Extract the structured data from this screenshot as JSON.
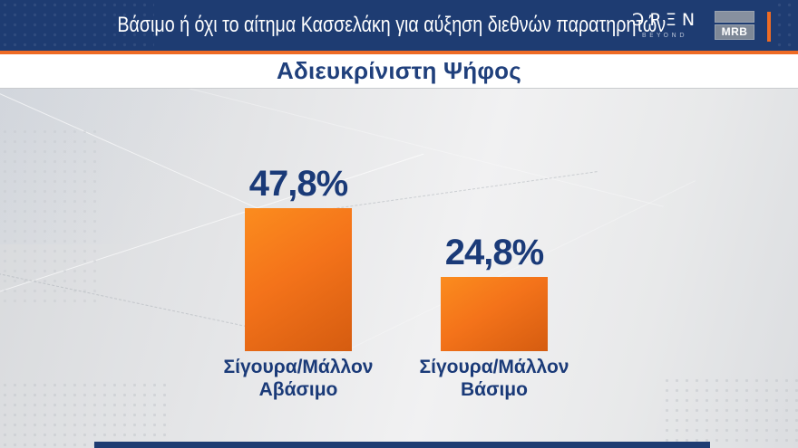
{
  "header": {
    "title": "Βάσιμο ή όχι το αίτημα Κασσελάκη για αύξηση διεθνών παρατηρητών",
    "open_brand": {
      "text": "OPEN",
      "stylized": "ƆPΞN",
      "tagline": "BEYOND"
    },
    "mrb_label": "MRB"
  },
  "subtitle": "Αδιευκρίνιστη Ψήφος",
  "colors": {
    "header_navy": "#1e3c72",
    "accent_orange": "#ee6b24",
    "text_navy": "#1a3a78",
    "bar_gradient_top": "#fb8c1e",
    "bar_gradient_bottom": "#d55c10",
    "band_white": "#ffffff",
    "background_gray": "#e4e5e7"
  },
  "chart_data": {
    "type": "bar",
    "title": "Αδιευκρίνιστη Ψήφος",
    "context_title": "Βάσιμο ή όχι το αίτημα Κασσελάκη για αύξηση διεθνών παρατηρητών",
    "categories": [
      "Σίγουρα/Μάλλον Αβάσιμο",
      "Σίγουρα/Μάλλον Βάσιμο"
    ],
    "categories_lines": [
      [
        "Σίγουρα/Μάλλον",
        "Αβάσιμο"
      ],
      [
        "Σίγουρα/Μάλλον",
        "Βάσιμο"
      ]
    ],
    "values": [
      47.8,
      24.8
    ],
    "value_labels": [
      "47,8%",
      "24,8%"
    ],
    "unit": "%",
    "ylim": [
      0,
      100
    ],
    "grid": false,
    "legend": false,
    "bar_color": "#f4731a",
    "value_label_color": "#1a3a78",
    "sources": [
      "OPEN BEYOND",
      "MRB"
    ]
  }
}
